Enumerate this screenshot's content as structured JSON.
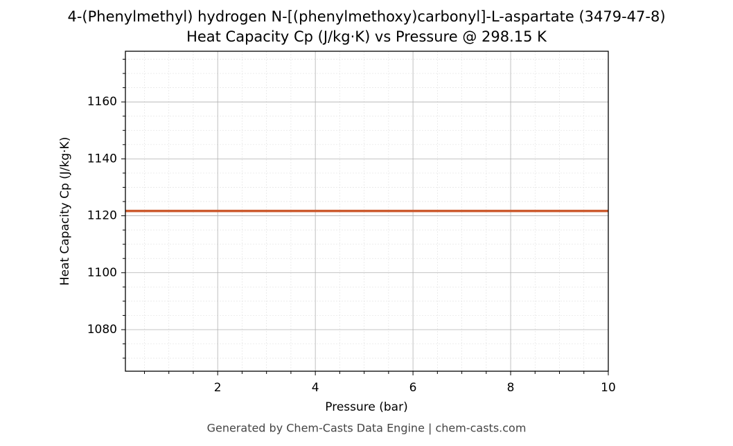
{
  "chart_data": {
    "type": "line",
    "title": "4-(Phenylmethyl) hydrogen N-[(phenylmethoxy)carbonyl]-L-aspartate (3479-47-8)",
    "subtitle": "Heat Capacity Cp (J/kg·K) vs Pressure @ 298.15 K",
    "x_label": "Pressure (bar)",
    "y_label": "Heat Capacity Cp (J/kg·K)",
    "footer": "Generated by Chem-Casts Data Engine | chem-casts.com",
    "x": [
      0.11,
      10
    ],
    "series": [
      {
        "name": "Cp",
        "color": "#cc5a2e",
        "values": [
          1121.7,
          1121.7
        ]
      }
    ],
    "xlim": [
      0.11,
      10
    ],
    "xticks": [
      2,
      4,
      6,
      8,
      10
    ],
    "xminorticks": [
      0.5,
      1,
      1.5,
      2.5,
      3,
      3.5,
      4.5,
      5,
      5.5,
      6.5,
      7,
      7.5,
      8.5,
      9,
      9.5
    ],
    "ylim": [
      1065.4,
      1177.8
    ],
    "yticks": [
      1080,
      1100,
      1120,
      1140,
      1160
    ],
    "yminorticks": [
      1070,
      1075,
      1085,
      1090,
      1095,
      1105,
      1110,
      1115,
      1125,
      1130,
      1135,
      1145,
      1150,
      1155,
      1165,
      1170,
      1175
    ],
    "grid": true
  }
}
